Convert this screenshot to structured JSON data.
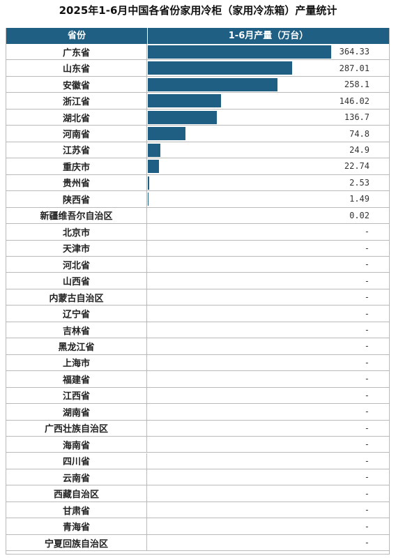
{
  "title": "2025年1-6月中国各省份家用冷柜（家用冷冻箱）产量统计",
  "header": {
    "col1": "省份",
    "col2": "1-6月产量（万台）"
  },
  "colors": {
    "header_bg": "#1f5f84",
    "bar": "#1f5f84",
    "grid": "#b9b9b9"
  },
  "rows": [
    {
      "name": "广东省",
      "value": "364.33"
    },
    {
      "name": "山东省",
      "value": "287.01"
    },
    {
      "name": "安徽省",
      "value": "258.1"
    },
    {
      "name": "浙江省",
      "value": "146.02"
    },
    {
      "name": "湖北省",
      "value": "136.7"
    },
    {
      "name": "河南省",
      "value": "74.8"
    },
    {
      "name": "江苏省",
      "value": "24.9"
    },
    {
      "name": "重庆市",
      "value": "22.74"
    },
    {
      "name": "贵州省",
      "value": "2.53"
    },
    {
      "name": "陕西省",
      "value": "1.49"
    },
    {
      "name": "新疆维吾尔自治区",
      "value": "0.02"
    },
    {
      "name": "北京市",
      "value": "-"
    },
    {
      "name": "天津市",
      "value": "-"
    },
    {
      "name": "河北省",
      "value": "-"
    },
    {
      "name": "山西省",
      "value": "-"
    },
    {
      "name": "内蒙古自治区",
      "value": "-"
    },
    {
      "name": "辽宁省",
      "value": "-"
    },
    {
      "name": "吉林省",
      "value": "-"
    },
    {
      "name": "黑龙江省",
      "value": "-"
    },
    {
      "name": "上海市",
      "value": "-"
    },
    {
      "name": "福建省",
      "value": "-"
    },
    {
      "name": "江西省",
      "value": "-"
    },
    {
      "name": "湖南省",
      "value": "-"
    },
    {
      "name": "广西壮族自治区",
      "value": "-"
    },
    {
      "name": "海南省",
      "value": "-"
    },
    {
      "name": "四川省",
      "value": "-"
    },
    {
      "name": "云南省",
      "value": "-"
    },
    {
      "name": "西藏自治区",
      "value": "-"
    },
    {
      "name": "甘肃省",
      "value": "-"
    },
    {
      "name": "青海省",
      "value": "-"
    },
    {
      "name": "宁夏回族自治区",
      "value": "-"
    }
  ],
  "chart_data": {
    "type": "bar",
    "orientation": "horizontal",
    "title": "2025年1-6月中国各省份家用冷柜（家用冷冻箱）产量统计",
    "xlabel": "1-6月产量（万台）",
    "ylabel": "省份",
    "categories": [
      "广东省",
      "山东省",
      "安徽省",
      "浙江省",
      "湖北省",
      "河南省",
      "江苏省",
      "重庆市",
      "贵州省",
      "陕西省",
      "新疆维吾尔自治区",
      "北京市",
      "天津市",
      "河北省",
      "山西省",
      "内蒙古自治区",
      "辽宁省",
      "吉林省",
      "黑龙江省",
      "上海市",
      "福建省",
      "江西省",
      "湖南省",
      "广西壮族自治区",
      "海南省",
      "四川省",
      "云南省",
      "西藏自治区",
      "甘肃省",
      "青海省",
      "宁夏回族自治区"
    ],
    "values": [
      364.33,
      287.01,
      258.1,
      146.02,
      136.7,
      74.8,
      24.9,
      22.74,
      2.53,
      1.49,
      0.02,
      null,
      null,
      null,
      null,
      null,
      null,
      null,
      null,
      null,
      null,
      null,
      null,
      null,
      null,
      null,
      null,
      null,
      null,
      null,
      null
    ],
    "grid": true
  }
}
